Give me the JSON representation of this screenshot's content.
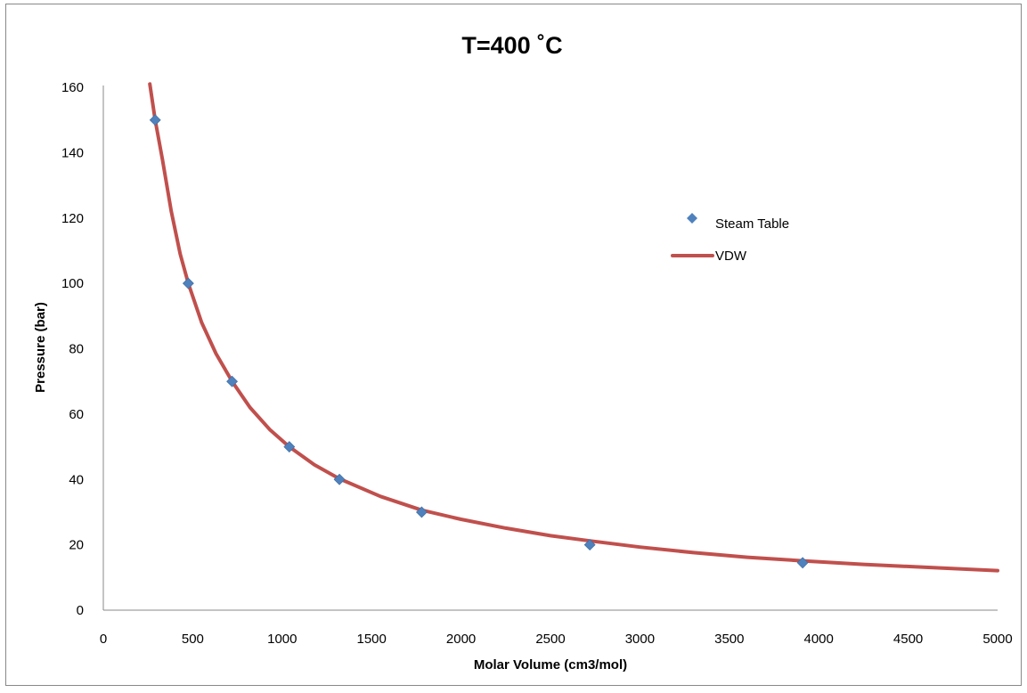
{
  "chart_data": {
    "type": "scatter",
    "title": "T=400 ˚C",
    "xlabel": "Molar Volume (cm3/mol)",
    "ylabel": "Pressure (bar)",
    "xlim": [
      0,
      5000
    ],
    "ylim": [
      0,
      160
    ],
    "xticks": [
      0,
      500,
      1000,
      1500,
      2000,
      2500,
      3000,
      3500,
      4000,
      4500,
      5000
    ],
    "yticks": [
      0,
      20,
      40,
      60,
      80,
      100,
      120,
      140,
      160
    ],
    "grid": false,
    "legend_position": "right",
    "series": [
      {
        "name": "Steam Table",
        "kind": "markers",
        "marker": "diamond",
        "color": "#4F81BD",
        "x": [
          290,
          475,
          720,
          1040,
          1320,
          1780,
          2720,
          3910
        ],
        "y": [
          150,
          100,
          70,
          50,
          40,
          30,
          20,
          14.5
        ]
      },
      {
        "name": "VDW",
        "kind": "line",
        "color": "#C0504D",
        "x": [
          260,
          290,
          330,
          380,
          430,
          475,
          550,
          630,
          720,
          820,
          930,
          1040,
          1180,
          1320,
          1550,
          1780,
          2000,
          2250,
          2500,
          2720,
          3000,
          3300,
          3600,
          3910,
          4250,
          4600,
          5000
        ],
        "y": [
          161,
          150,
          138,
          122,
          109,
          100,
          88,
          78.5,
          70,
          62,
          55.3,
          50,
          44.5,
          40.2,
          34.8,
          30.6,
          27.8,
          25.1,
          22.8,
          21.2,
          19.3,
          17.6,
          16.2,
          15.1,
          14.0,
          13.1,
          12.1
        ]
      }
    ]
  }
}
